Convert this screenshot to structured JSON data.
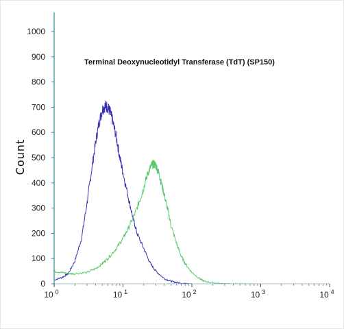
{
  "chart_data": {
    "type": "line",
    "title": "Terminal Deoxynucleotidyl Transferase (TdT)  (SP150)",
    "ylabel": "Count",
    "xlabel": "",
    "x_scale": "log",
    "xlim": [
      1,
      10000
    ],
    "ylim": [
      0,
      1000
    ],
    "y_ticks": [
      "0",
      "100",
      "200",
      "300",
      "400",
      "500",
      "600",
      "700",
      "800",
      "900",
      "1000"
    ],
    "x_ticks": [
      {
        "base": "10",
        "exp": "0"
      },
      {
        "base": "10",
        "exp": "1"
      },
      {
        "base": "10",
        "exp": "2"
      },
      {
        "base": "10",
        "exp": "3"
      },
      {
        "base": "10",
        "exp": "4"
      }
    ],
    "grid": false,
    "series": [
      {
        "color": "#3a30b4",
        "x": [
          1.0,
          1.3,
          1.6,
          2.0,
          2.5,
          3.0,
          3.5,
          4.0,
          4.5,
          5.0,
          5.5,
          6.0,
          6.5,
          7.0,
          8.0,
          9.0,
          10,
          12,
          14,
          16,
          20,
          25,
          30,
          40,
          50,
          60,
          80,
          100,
          150,
          200,
          1000,
          10000
        ],
        "y": [
          15,
          25,
          40,
          90,
          180,
          320,
          450,
          560,
          640,
          690,
          705,
          700,
          680,
          650,
          580,
          500,
          440,
          340,
          260,
          200,
          140,
          80,
          50,
          20,
          10,
          5,
          2,
          0,
          0,
          0,
          0,
          0
        ]
      },
      {
        "color": "#5cc86e",
        "x": [
          1.0,
          1.3,
          1.6,
          2.0,
          3.0,
          4.0,
          5.0,
          6.0,
          8.0,
          10,
          12,
          15,
          18,
          20,
          23,
          26,
          28,
          30,
          33,
          36,
          40,
          45,
          50,
          60,
          70,
          80,
          100,
          130,
          150,
          200,
          300,
          1000,
          10000
        ],
        "y": [
          50,
          45,
          40,
          40,
          45,
          60,
          80,
          100,
          140,
          180,
          220,
          280,
          340,
          380,
          440,
          470,
          475,
          470,
          440,
          400,
          350,
          290,
          230,
          160,
          110,
          80,
          45,
          20,
          10,
          4,
          1,
          0,
          0
        ]
      }
    ]
  }
}
